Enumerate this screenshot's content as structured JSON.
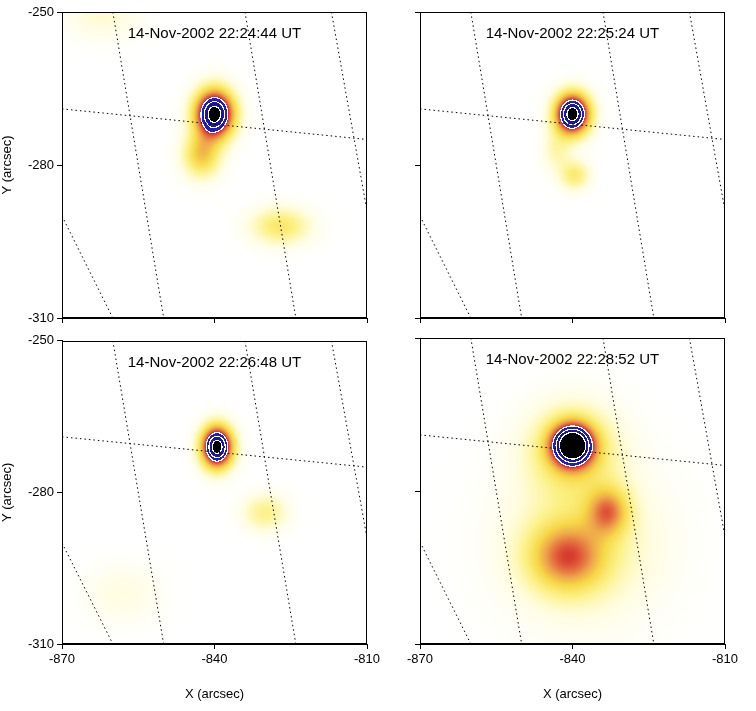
{
  "chart_data": [
    {
      "type": "heatmap",
      "title": "14-Nov-2002 22:24:44 UT",
      "y_label": "Y (arcsec)",
      "xlim": [
        -870,
        -810
      ],
      "ylim": [
        -310,
        -250
      ],
      "xticks": [
        -870,
        -840,
        -810
      ],
      "yticks": [
        -310,
        -280,
        -250
      ],
      "grid": false,
      "tick_labels": "y",
      "contours": [
        0.6,
        0.75,
        0.9
      ],
      "sources": [
        {
          "x": -840,
          "y": -270,
          "sx": 2.6,
          "sy": 3.2,
          "peak": 1.0
        },
        {
          "x": -842.5,
          "y": -278,
          "sx": 2.5,
          "sy": 3,
          "peak": 0.33
        },
        {
          "x": -827,
          "y": -292,
          "sx": 4,
          "sy": 2.5,
          "peak": 0.22
        },
        {
          "x": -862,
          "y": -251,
          "sx": 5,
          "sy": 3,
          "peak": 0.08
        }
      ],
      "heliographic_grid": [
        {
          "x": [
            -860,
            -850
          ],
          "y": [
            -250,
            -310
          ]
        },
        {
          "x": [
            -834,
            -824
          ],
          "y": [
            -250,
            -310
          ]
        },
        {
          "x": [
            -817,
            -810
          ],
          "y": [
            -250,
            -289
          ]
        },
        {
          "x": [
            -870,
            -860
          ],
          "y": [
            -290,
            -310
          ]
        },
        {
          "x": [
            -870,
            -810
          ],
          "y": [
            -269,
            -275
          ]
        }
      ]
    },
    {
      "type": "heatmap",
      "title": "14-Nov-2002 22:25:24 UT",
      "xlim": [
        -870,
        -810
      ],
      "ylim": [
        -310,
        -250
      ],
      "xticks": [
        -870,
        -840,
        -810
      ],
      "yticks": [
        -310,
        -280,
        -250
      ],
      "grid": false,
      "tick_labels": false,
      "contours": [
        0.6,
        0.75,
        0.9
      ],
      "sources": [
        {
          "x": -840,
          "y": -270,
          "sx": 2.3,
          "sy": 2.7,
          "peak": 1.0
        },
        {
          "x": -839.5,
          "y": -282,
          "sx": 2,
          "sy": 2,
          "peak": 0.2
        },
        {
          "x": -843,
          "y": -277,
          "sx": 2,
          "sy": 3,
          "peak": 0.12
        }
      ],
      "heliographic_grid": [
        {
          "x": [
            -860,
            -850
          ],
          "y": [
            -250,
            -310
          ]
        },
        {
          "x": [
            -834,
            -824
          ],
          "y": [
            -250,
            -310
          ]
        },
        {
          "x": [
            -817,
            -810
          ],
          "y": [
            -250,
            -289
          ]
        },
        {
          "x": [
            -870,
            -860
          ],
          "y": [
            -290,
            -310
          ]
        },
        {
          "x": [
            -870,
            -810
          ],
          "y": [
            -269,
            -275
          ]
        }
      ]
    },
    {
      "type": "heatmap",
      "title": "14-Nov-2002 22:26:48 UT",
      "x_label": "X (arcsec)",
      "y_label": "Y (arcsec)",
      "xlim": [
        -870,
        -810
      ],
      "ylim": [
        -310,
        -250
      ],
      "xticks": [
        -870,
        -840,
        -810
      ],
      "yticks": [
        -310,
        -280,
        -250
      ],
      "grid": false,
      "tick_labels": true,
      "contours": [
        0.6,
        0.75,
        0.9
      ],
      "sources": [
        {
          "x": -839.5,
          "y": -271,
          "sx": 2.1,
          "sy": 2.8,
          "peak": 1.0
        },
        {
          "x": -830,
          "y": -284,
          "sx": 3,
          "sy": 2.5,
          "peak": 0.17
        },
        {
          "x": -858,
          "y": -300,
          "sx": 5,
          "sy": 4,
          "peak": 0.06
        }
      ],
      "heliographic_grid": [
        {
          "x": [
            -860,
            -850
          ],
          "y": [
            -250,
            -310
          ]
        },
        {
          "x": [
            -834,
            -824
          ],
          "y": [
            -250,
            -310
          ]
        },
        {
          "x": [
            -817,
            -810
          ],
          "y": [
            -250,
            -289
          ]
        },
        {
          "x": [
            -870,
            -860
          ],
          "y": [
            -290,
            -310
          ]
        },
        {
          "x": [
            -870,
            -810
          ],
          "y": [
            -269,
            -275
          ]
        }
      ]
    },
    {
      "type": "heatmap",
      "title": "14-Nov-2002 22:28:52 UT",
      "x_label": "X (arcsec)",
      "xlim": [
        -870,
        -810
      ],
      "ylim": [
        -310,
        -250
      ],
      "xticks": [
        -870,
        -840,
        -810
      ],
      "yticks": [
        -310,
        -280,
        -250
      ],
      "grid": false,
      "tick_labels": "x",
      "contours": [
        0.6,
        0.75,
        0.9
      ],
      "sources": [
        {
          "x": -840,
          "y": -271,
          "sx": 2.8,
          "sy": 2.8,
          "peak": 1.0
        },
        {
          "x": -840,
          "y": -272,
          "sx": 6,
          "sy": 6,
          "peak": 0.25
        },
        {
          "x": -841,
          "y": -293,
          "sx": 5,
          "sy": 4.5,
          "peak": 0.42
        },
        {
          "x": -833,
          "y": -284,
          "sx": 2.8,
          "sy": 3.2,
          "peak": 0.38
        },
        {
          "x": -838,
          "y": -290,
          "sx": 10,
          "sy": 10,
          "peak": 0.15
        }
      ],
      "heliographic_grid": [
        {
          "x": [
            -860,
            -850
          ],
          "y": [
            -250,
            -310
          ]
        },
        {
          "x": [
            -834,
            -824
          ],
          "y": [
            -250,
            -310
          ]
        },
        {
          "x": [
            -817,
            -810
          ],
          "y": [
            -250,
            -289
          ]
        },
        {
          "x": [
            -870,
            -860
          ],
          "y": [
            -290,
            -310
          ]
        },
        {
          "x": [
            -870,
            -810
          ],
          "y": [
            -269,
            -275
          ]
        }
      ]
    }
  ]
}
